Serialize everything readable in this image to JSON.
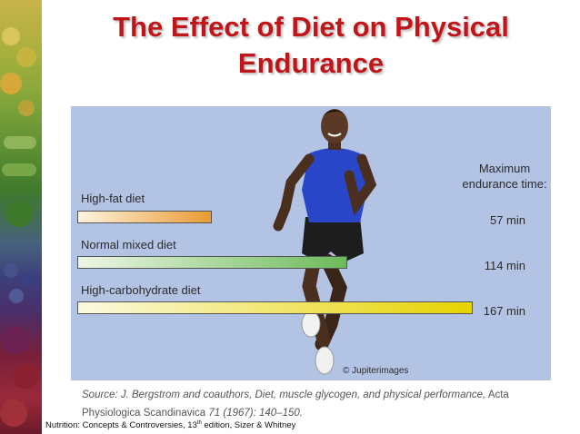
{
  "title_line1": "The Effect of Diet on Physical",
  "title_line2": "Endurance",
  "chart_data": {
    "type": "bar",
    "orientation": "horizontal",
    "categories": [
      "High-fat diet",
      "Normal mixed diet",
      "High-carbohydrate diet"
    ],
    "values": [
      57,
      114,
      167
    ],
    "value_labels": [
      "57 min",
      "114 min",
      "167 min"
    ],
    "unit": "min",
    "header_line1": "Maximum",
    "header_line2": "endurance time:",
    "xlim": [
      0,
      167
    ],
    "grid": false,
    "colors": [
      "#e99a32",
      "#6cba5a",
      "#e7d300"
    ]
  },
  "image_credit": "© Jupiterimages",
  "source": {
    "prefix": "Source: J. Bergstrom and coauthors, Diet, muscle glycogen, and physical performance,",
    "journal_line1": "Acta",
    "journal_line2": "Physiologica Scandinavica",
    "volume": "71 (1967): 140–150."
  },
  "footnote": {
    "part1": "Nutrition: Concepts & Controversies, 13",
    "sup": "th",
    "part2": " edition, Sizer & Whitney"
  },
  "panel_color": "#b3c3e4",
  "title_color": "#c0161a"
}
